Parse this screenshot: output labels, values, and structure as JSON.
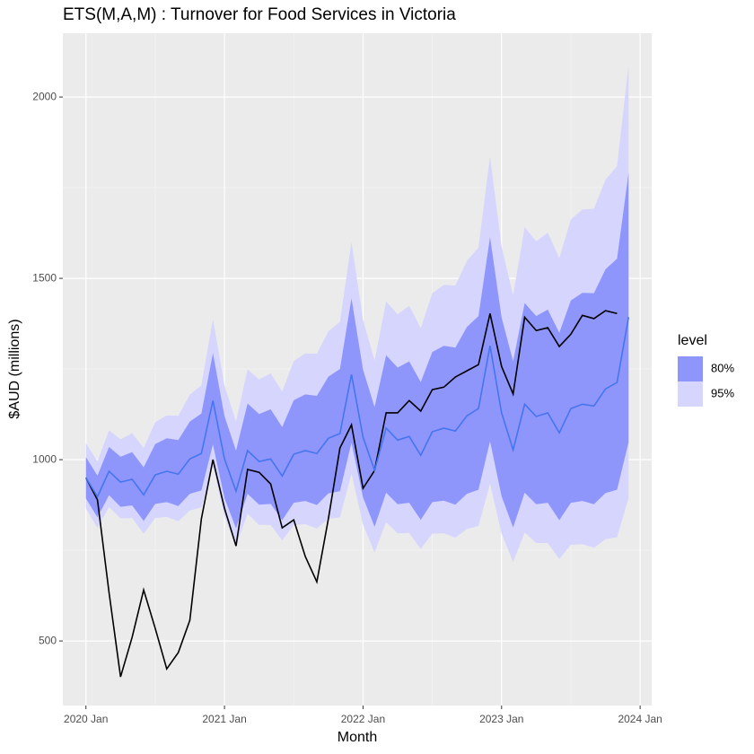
{
  "chart_data": {
    "type": "line",
    "title": "ETS(M,A,M) : Turnover for Food Services in Victoria",
    "x_label": "Month",
    "y_label": "$AUD (millions)",
    "x": [
      "2020 Jan",
      "2020 Feb",
      "2020 Mar",
      "2020 Apr",
      "2020 May",
      "2020 Jun",
      "2020 Jul",
      "2020 Aug",
      "2020 Sep",
      "2020 Oct",
      "2020 Nov",
      "2020 Dec",
      "2021 Jan",
      "2021 Feb",
      "2021 Mar",
      "2021 Apr",
      "2021 May",
      "2021 Jun",
      "2021 Jul",
      "2021 Aug",
      "2021 Sep",
      "2021 Oct",
      "2021 Nov",
      "2021 Dec",
      "2022 Jan",
      "2022 Feb",
      "2022 Mar",
      "2022 Apr",
      "2022 May",
      "2022 Jun",
      "2022 Jul",
      "2022 Aug",
      "2022 Sep",
      "2022 Oct",
      "2022 Nov",
      "2022 Dec",
      "2023 Jan",
      "2023 Feb",
      "2023 Mar",
      "2023 Apr",
      "2023 May",
      "2023 Jun",
      "2023 Jul",
      "2023 Aug",
      "2023 Sep",
      "2023 Oct",
      "2023 Nov",
      "2023 Dec"
    ],
    "series": [
      {
        "color": "#000000",
        "values": [
          950,
          889,
          634,
          401,
          510,
          641,
          535,
          423,
          468,
          557,
          837,
          1000,
          866,
          762,
          973,
          965,
          933,
          812,
          834,
          733,
          663,
          837,
          1032,
          1096,
          921,
          970,
          1129,
          1129,
          1163,
          1134,
          1193,
          1200,
          1228,
          1245,
          1262,
          1403,
          1257,
          1181,
          1393,
          1356,
          1364,
          1312,
          1346,
          1398,
          1389,
          1411,
          1403,
          null
        ]
      },
      {
        "color": "#4575f0",
        "values": [
          950,
          898,
          968,
          938,
          946,
          903,
          958,
          968,
          960,
          1002,
          1017,
          1163,
          1002,
          913,
          1025,
          995,
          1002,
          955,
          1015,
          1025,
          1017,
          1059,
          1072,
          1235,
          1062,
          970,
          1087,
          1054,
          1064,
          1012,
          1077,
          1087,
          1079,
          1121,
          1141,
          1314,
          1129,
          1027,
          1153,
          1119,
          1129,
          1074,
          1141,
          1153,
          1148,
          1195,
          1213,
          1393
        ]
      }
    ],
    "legend_title": "level",
    "bands": [
      {
        "name": "80%",
        "color": "#8f96fb",
        "lower": [
          893,
          841,
          902,
          870,
          874,
          831,
          878,
          883,
          872,
          906,
          915,
          1042,
          894,
          811,
          906,
          876,
          878,
          833,
          881,
          886,
          875,
          907,
          913,
          1047,
          896,
          815,
          909,
          877,
          881,
          834,
          883,
          887,
          876,
          906,
          917,
          1051,
          899,
          813,
          909,
          877,
          881,
          833,
          881,
          886,
          877,
          908,
          917,
          1048
        ],
        "upper": [
          1007,
          956,
          1035,
          1008,
          1021,
          979,
          1043,
          1059,
          1054,
          1105,
          1127,
          1294,
          1120,
          1025,
          1155,
          1126,
          1139,
          1090,
          1164,
          1180,
          1176,
          1229,
          1250,
          1445,
          1248,
          1145,
          1288,
          1254,
          1271,
          1214,
          1297,
          1314,
          1309,
          1366,
          1396,
          1614,
          1392,
          1271,
          1432,
          1396,
          1414,
          1350,
          1439,
          1460,
          1459,
          1525,
          1554,
          1791
        ]
      },
      {
        "name": "95%",
        "color": "#d5d5fd",
        "lower": [
          865,
          812,
          870,
          838,
          839,
          796,
          839,
          842,
          830,
          860,
          868,
          985,
          843,
          763,
          851,
          820,
          820,
          777,
          820,
          822,
          810,
          837,
          841,
          962,
          821,
          744,
          828,
          797,
          798,
          754,
          796,
          797,
          785,
          809,
          817,
          934,
          796,
          718,
          799,
          770,
          770,
          726,
          765,
          767,
          757,
          781,
          786,
          894
        ],
        "upper": [
          1045,
          995,
          1081,
          1056,
          1073,
          1032,
          1103,
          1122,
          1121,
          1179,
          1205,
          1388,
          1204,
          1105,
          1249,
          1221,
          1238,
          1188,
          1272,
          1293,
          1292,
          1354,
          1380,
          1600,
          1385,
          1273,
          1436,
          1401,
          1424,
          1363,
          1459,
          1482,
          1480,
          1548,
          1585,
          1836,
          1587,
          1453,
          1641,
          1602,
          1626,
          1556,
          1662,
          1690,
          1692,
          1772,
          1809,
          2089
        ]
      }
    ],
    "xlim": [
      "2019 Nov",
      "2024 Feb"
    ],
    "xticks": [
      "2020 Jan",
      "2021 Jan",
      "2022 Jan",
      "2023 Jan",
      "2024 Jan"
    ],
    "xminor": [
      "2020 Jul",
      "2021 Jul",
      "2022 Jul",
      "2023 Jul"
    ],
    "ylim": [
      322,
      2176
    ],
    "yticks": [
      500,
      1000,
      1500,
      2000
    ],
    "yminor": [
      750,
      1250,
      1750
    ],
    "grid": true
  }
}
